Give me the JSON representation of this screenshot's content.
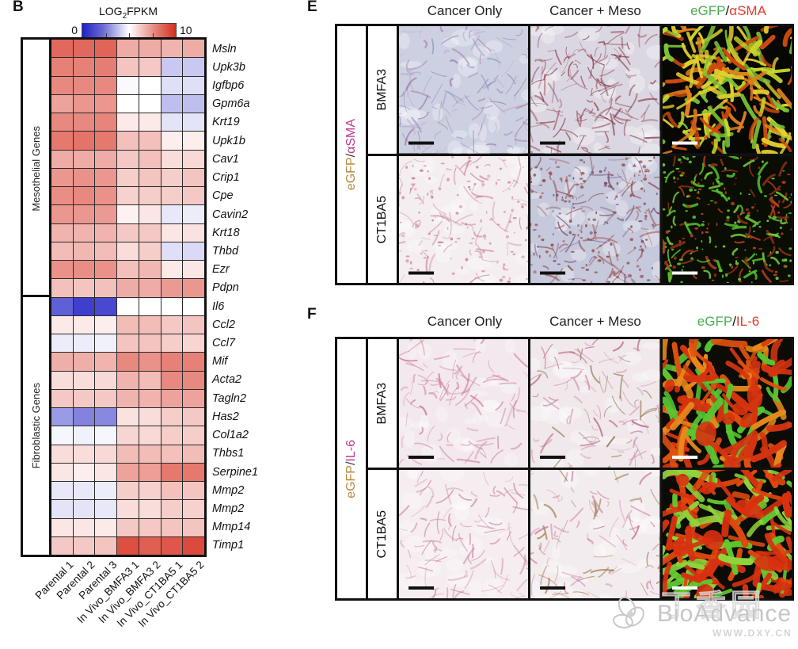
{
  "panel_b": {
    "label": "B",
    "legend": {
      "pre": "LOG",
      "sub": "2",
      "post": "FPKM",
      "min": "0",
      "max": "10"
    }
  },
  "chart_data": {
    "type": "heatmap",
    "title": "LOG2FPKM",
    "colorbar": {
      "min": 0,
      "max": 10,
      "min_color": "#2121c4",
      "mid_color": "#ffffff",
      "max_color": "#d62d1d"
    },
    "columns": [
      "Parental 1",
      "Parental 2",
      "Parental 3",
      "In Vivo_BMFA3 1",
      "In Vivo_BMFA3 2",
      "In Vivo_CT1BA5 1",
      "In Vivo_CT1BA5 2"
    ],
    "gene_groups": [
      {
        "label": "Mesothelial Genes",
        "start": 0,
        "count": 14
      },
      {
        "label": "Fibroblastic Genes",
        "start": 14,
        "count": 14
      }
    ],
    "genes": [
      "Msln",
      "Upk3b",
      "Igfbp6",
      "Gpm6a",
      "Krt19",
      "Upk1b",
      "Cav1",
      "Crip1",
      "Cpe",
      "Cavin2",
      "Krt18",
      "Thbd",
      "Ezr",
      "Pdpn",
      "Il6",
      "Ccl2",
      "Ccl7",
      "Mif",
      "Acta2",
      "Tagln2",
      "Has2",
      "Col1a2",
      "Thbs1",
      "Serpine1",
      "Mmp2",
      "Mmp2",
      "Mmp14",
      "Timp1"
    ],
    "values": [
      [
        8.6,
        8.6,
        8.7,
        7.0,
        7.0,
        6.8,
        7.0
      ],
      [
        8.0,
        8.0,
        8.1,
        6.4,
        6.3,
        3.8,
        3.8
      ],
      [
        7.8,
        7.8,
        7.8,
        4.9,
        5.0,
        4.3,
        4.3
      ],
      [
        7.2,
        7.5,
        7.5,
        5.0,
        5.0,
        3.6,
        3.6
      ],
      [
        7.8,
        7.8,
        7.9,
        5.5,
        5.5,
        4.4,
        4.4
      ],
      [
        8.2,
        8.3,
        8.2,
        6.5,
        6.5,
        5.4,
        5.4
      ],
      [
        7.0,
        7.0,
        7.0,
        6.3,
        6.5,
        5.8,
        5.9
      ],
      [
        7.5,
        7.6,
        7.5,
        6.2,
        6.4,
        6.2,
        6.4
      ],
      [
        7.7,
        7.8,
        7.6,
        6.1,
        6.2,
        6.2,
        6.3
      ],
      [
        7.5,
        7.5,
        7.4,
        5.3,
        5.6,
        4.5,
        4.6
      ],
      [
        6.8,
        6.8,
        6.8,
        6.3,
        6.3,
        5.6,
        5.7
      ],
      [
        6.6,
        6.7,
        6.6,
        5.8,
        6.2,
        4.3,
        4.2
      ],
      [
        7.6,
        7.7,
        7.6,
        6.5,
        6.7,
        5.5,
        5.6
      ],
      [
        6.5,
        6.4,
        6.5,
        7.0,
        7.0,
        7.4,
        7.5
      ],
      [
        1.5,
        0.8,
        1.0,
        5.0,
        5.0,
        5.0,
        5.0
      ],
      [
        5.5,
        5.5,
        5.4,
        6.6,
        6.6,
        6.3,
        6.4
      ],
      [
        4.6,
        4.6,
        4.7,
        6.4,
        6.4,
        6.2,
        6.0
      ],
      [
        6.9,
        6.9,
        6.8,
        7.8,
        7.6,
        8.0,
        8.0
      ],
      [
        5.8,
        5.8,
        5.9,
        6.8,
        6.6,
        7.8,
        7.8
      ],
      [
        6.3,
        6.3,
        6.3,
        6.8,
        6.8,
        7.2,
        7.2
      ],
      [
        2.8,
        2.3,
        2.4,
        5.7,
        5.8,
        6.2,
        6.3
      ],
      [
        4.8,
        4.7,
        4.8,
        6.0,
        5.9,
        6.2,
        6.2
      ],
      [
        5.8,
        5.8,
        5.9,
        6.6,
        6.6,
        6.5,
        6.6
      ],
      [
        5.6,
        5.4,
        5.6,
        7.2,
        7.3,
        8.2,
        8.2
      ],
      [
        4.5,
        4.5,
        4.6,
        6.2,
        6.1,
        6.5,
        6.4
      ],
      [
        4.4,
        4.4,
        4.5,
        5.8,
        5.8,
        6.2,
        6.1
      ],
      [
        5.6,
        5.6,
        5.5,
        6.3,
        6.3,
        6.4,
        6.4
      ],
      [
        6.3,
        6.3,
        6.4,
        9.2,
        8.8,
        9.0,
        9.3
      ]
    ]
  },
  "panel_e": {
    "label": "E",
    "headers": [
      "Cancer Only",
      "Cancer + Meso"
    ],
    "fluor_header": {
      "green": "eGFP",
      "sep": "/",
      "red": "αSMA"
    },
    "side_label": {
      "gold": "eGFP",
      "sep": "/",
      "magenta": "αSMA"
    },
    "row_labels": [
      "BMFA3",
      "CT1BA5"
    ],
    "colors": {
      "header_green": "#4aae4e",
      "header_red": "#e23b28",
      "side_gold": "#b5893f",
      "side_magenta": "#c23a8f"
    },
    "tiles": [
      {
        "id": "e-bmfa3-cancer-only",
        "base": "#ccd0e1",
        "accents": [
          "#a078a8",
          "#8f93c2",
          "#c4b2cc"
        ],
        "style": "streaks",
        "density": 120,
        "scalebar": "#111111"
      },
      {
        "id": "e-bmfa3-cancer-meso",
        "base": "#dbd7e2",
        "accents": [
          "#8e3c4e",
          "#7c3346",
          "#a05a63"
        ],
        "style": "streaks",
        "density": 150,
        "scalebar": "#111111"
      },
      {
        "id": "e-bmfa3-egfp-asma",
        "base": "#070703",
        "accents": [
          "#e6cf2e",
          "#c9d92c",
          "#cf4a10",
          "#7cc437",
          "#e2801e"
        ],
        "style": "glow",
        "density": 170,
        "scalebar": "#ffffff"
      },
      {
        "id": "e-ct1ba5-cancer-only",
        "base": "#f4eef1",
        "accents": [
          "#c8809a",
          "#d49aae"
        ],
        "style": "specks",
        "density": 190,
        "scalebar": "#111111"
      },
      {
        "id": "e-ct1ba5-cancer-meso",
        "base": "#c6c8dc",
        "accents": [
          "#8d4a48",
          "#a3554f",
          "#6d4a6e"
        ],
        "style": "specks",
        "density": 260,
        "scalebar": "#111111"
      },
      {
        "id": "e-ct1ba5-egfp-asma",
        "base": "#0a0d04",
        "accents": [
          "#55c32f",
          "#79ce3b",
          "#8f2f17",
          "#b8401a"
        ],
        "style": "specks-glow",
        "density": 280,
        "scalebar": "#ffffff"
      }
    ]
  },
  "panel_f": {
    "label": "F",
    "headers": [
      "Cancer Only",
      "Cancer + Meso"
    ],
    "fluor_header": {
      "green": "eGFP",
      "sep": "/",
      "red": "IL-6"
    },
    "side_label": {
      "gold": "eGFP",
      "sep": "/",
      "magenta": "IL-6"
    },
    "row_labels": [
      "BMFA3",
      "CT1BA5"
    ],
    "tiles": [
      {
        "id": "f-bmfa3-cancer-only",
        "base": "#f2e8ed",
        "accents": [
          "#d488ab",
          "#c76f96"
        ],
        "style": "streaks",
        "density": 95,
        "scalebar": "#111111"
      },
      {
        "id": "f-bmfa3-cancer-meso",
        "base": "#f0e8eb",
        "accents": [
          "#cd85a8",
          "#8a6b42",
          "#b05a7e"
        ],
        "style": "streaks",
        "density": 100,
        "scalebar": "#111111"
      },
      {
        "id": "f-bmfa3-egfp-il6",
        "base": "#0c0b05",
        "accents": [
          "#d63410",
          "#e1500f",
          "#57c631",
          "#e78a1b"
        ],
        "style": "glow-thick",
        "density": 130,
        "scalebar": "#ffffff"
      },
      {
        "id": "f-ct1ba5-cancer-only",
        "base": "#f5edef",
        "accents": [
          "#d18fac",
          "#c77d9f"
        ],
        "style": "streaks",
        "density": 100,
        "scalebar": "#111111"
      },
      {
        "id": "f-ct1ba5-cancer-meso",
        "base": "#f3ecee",
        "accents": [
          "#cf8ba9",
          "#997543",
          "#c3607f"
        ],
        "style": "streaks",
        "density": 100,
        "scalebar": "#111111"
      },
      {
        "id": "f-ct1ba5-egfp-il6",
        "base": "#0b0c05",
        "accents": [
          "#d83110",
          "#e0490e",
          "#61ca2e",
          "#8fd43c"
        ],
        "style": "glow-thick",
        "density": 140,
        "scalebar": "#ffffff"
      }
    ]
  },
  "watermark": {
    "brand": "BioAdvance",
    "url_text": "WWW.DXY.CN",
    "ghost": "丁香园"
  }
}
